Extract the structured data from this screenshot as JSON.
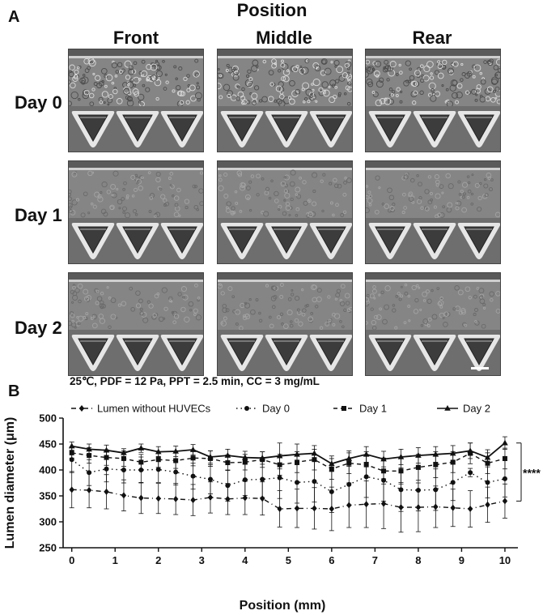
{
  "panel_a": {
    "letter": "A",
    "position_title": "Position",
    "columns": [
      "Front",
      "Middle",
      "Rear"
    ],
    "rows": [
      "Day 0",
      "Day 1",
      "Day 2"
    ],
    "caption": "25℃, PDF = 12 Pa, PPT = 2.5 min, CC = 3 mg/mL"
  },
  "panel_b": {
    "letter": "B"
  },
  "chart_data": {
    "type": "line",
    "xlabel": "Position (mm)",
    "ylabel": "Lumen diameter (μm)",
    "xlim": [
      -0.2,
      10.3
    ],
    "ylim": [
      250,
      500
    ],
    "xticks": [
      0,
      1,
      2,
      3,
      4,
      5,
      6,
      7,
      8,
      9,
      10
    ],
    "yticks": [
      250,
      300,
      350,
      400,
      450,
      500
    ],
    "legend_position": "top",
    "significance_label": "****",
    "x": [
      0,
      0.4,
      0.8,
      1.2,
      1.6,
      2.0,
      2.4,
      2.8,
      3.2,
      3.6,
      4.0,
      4.4,
      4.8,
      5.2,
      5.6,
      6.0,
      6.4,
      6.8,
      7.2,
      7.6,
      8.0,
      8.4,
      8.8,
      9.2,
      9.6,
      10.0
    ],
    "series": [
      {
        "name": "Lumen without HUVECs",
        "marker": "diamond",
        "dash": "6,4,1,4",
        "values": [
          362,
          361,
          358,
          351,
          346,
          345,
          344,
          342,
          347,
          344,
          346,
          345,
          325,
          326,
          326,
          325,
          332,
          334,
          335,
          328,
          328,
          329,
          327,
          325,
          333,
          340
        ],
        "errors": [
          35,
          34,
          33,
          30,
          30,
          29,
          30,
          30,
          30,
          30,
          32,
          32,
          35,
          37,
          40,
          42,
          43,
          45,
          48,
          48,
          47,
          40,
          36,
          35,
          34,
          33
        ]
      },
      {
        "name": "Day 0",
        "marker": "circle",
        "dash": "1.5,4",
        "values": [
          420,
          395,
          402,
          400,
          400,
          401,
          396,
          388,
          382,
          370,
          381,
          382,
          385,
          376,
          378,
          358,
          372,
          387,
          380,
          362,
          361,
          362,
          376,
          395,
          376,
          383
        ],
        "errors": [
          25,
          25,
          25,
          25,
          25,
          25,
          25,
          25,
          28,
          30,
          30,
          35,
          40,
          40,
          40,
          40,
          40,
          40,
          40,
          42,
          40,
          40,
          35,
          8,
          30,
          35
        ]
      },
      {
        "name": "Day 1",
        "marker": "square",
        "dash": "5,4",
        "values": [
          433,
          428,
          424,
          422,
          415,
          420,
          418,
          423,
          422,
          414,
          415,
          420,
          410,
          415,
          420,
          402,
          413,
          410,
          398,
          398,
          405,
          410,
          415,
          432,
          413,
          422
        ],
        "errors": [
          10,
          15,
          15,
          15,
          15,
          15,
          15,
          15,
          15,
          15,
          15,
          15,
          20,
          20,
          20,
          20,
          20,
          25,
          25,
          25,
          25,
          25,
          20,
          20,
          20,
          20
        ]
      },
      {
        "name": "Day 2",
        "marker": "triangle",
        "dash": "",
        "values": [
          446,
          440,
          438,
          433,
          442,
          435,
          436,
          439,
          425,
          428,
          424,
          423,
          427,
          430,
          432,
          412,
          422,
          430,
          421,
          425,
          428,
          430,
          432,
          437,
          424,
          452
        ],
        "errors": [
          8,
          10,
          10,
          8,
          8,
          10,
          10,
          10,
          12,
          12,
          12,
          12,
          25,
          20,
          15,
          15,
          15,
          15,
          15,
          15,
          15,
          15,
          15,
          15,
          15,
          12
        ]
      }
    ]
  },
  "colors": {
    "ink": "#111111",
    "micro_bg": "#7b7b7b"
  }
}
